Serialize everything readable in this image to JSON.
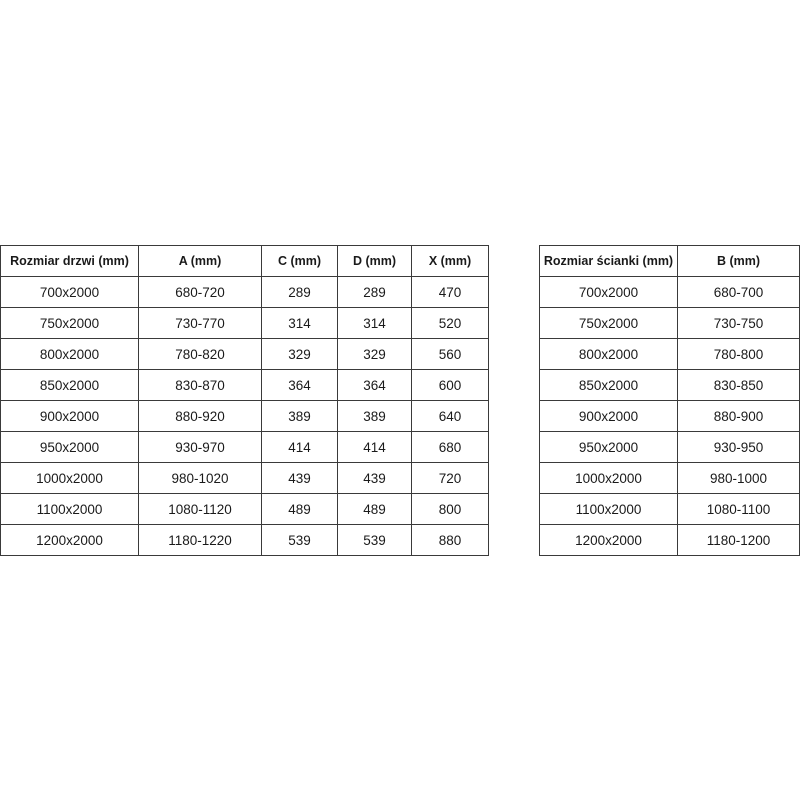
{
  "door_table": {
    "headers": [
      "Rozmiar drzwi (mm)",
      "A (mm)",
      "C (mm)",
      "D (mm)",
      "X (mm)"
    ],
    "rows": [
      [
        "700x2000",
        "680-720",
        "289",
        "289",
        "470"
      ],
      [
        "750x2000",
        "730-770",
        "314",
        "314",
        "520"
      ],
      [
        "800x2000",
        "780-820",
        "329",
        "329",
        "560"
      ],
      [
        "850x2000",
        "830-870",
        "364",
        "364",
        "600"
      ],
      [
        "900x2000",
        "880-920",
        "389",
        "389",
        "640"
      ],
      [
        "950x2000",
        "930-970",
        "414",
        "414",
        "680"
      ],
      [
        "1000x2000",
        "980-1020",
        "439",
        "439",
        "720"
      ],
      [
        "1100x2000",
        "1080-1120",
        "489",
        "489",
        "800"
      ],
      [
        "1200x2000",
        "1180-1220",
        "539",
        "539",
        "880"
      ]
    ]
  },
  "wall_table": {
    "headers": [
      "Rozmiar ścianki (mm)",
      "B (mm)"
    ],
    "rows": [
      [
        "700x2000",
        "680-700"
      ],
      [
        "750x2000",
        "730-750"
      ],
      [
        "800x2000",
        "780-800"
      ],
      [
        "850x2000",
        "830-850"
      ],
      [
        "900x2000",
        "880-900"
      ],
      [
        "950x2000",
        "930-950"
      ],
      [
        "1000x2000",
        "980-1000"
      ],
      [
        "1100x2000",
        "1080-1100"
      ],
      [
        "1200x2000",
        "1180-1200"
      ]
    ]
  }
}
